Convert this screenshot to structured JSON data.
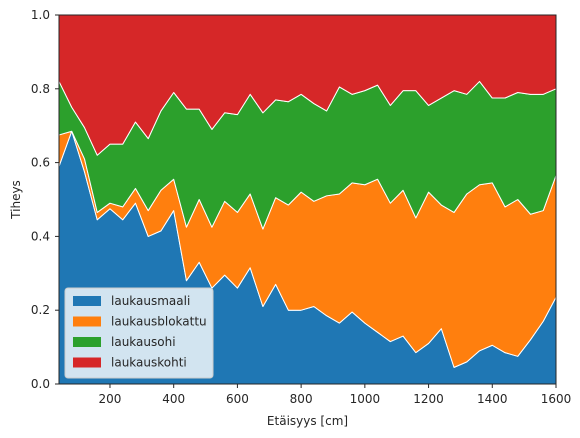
{
  "chart_data": {
    "type": "area",
    "stacked": true,
    "normalized": true,
    "xlabel": "Etäisyys [cm]",
    "ylabel": "Tiheys",
    "xlim": [
      40,
      1600
    ],
    "ylim": [
      0,
      1
    ],
    "xticks": [
      200,
      400,
      600,
      800,
      1000,
      1200,
      1400,
      1600
    ],
    "xtick_labels": [
      "200",
      "400",
      "600",
      "800",
      "1000",
      "1200",
      "1400",
      "1600"
    ],
    "yticks": [
      0,
      0.2,
      0.4,
      0.6,
      0.8,
      1.0
    ],
    "ytick_labels": [
      "0.0",
      "0.2",
      "0.4",
      "0.6",
      "0.8",
      "1.0"
    ],
    "grid": false,
    "legend_position": "lower-left",
    "x": [
      40,
      80,
      120,
      160,
      200,
      240,
      280,
      320,
      360,
      400,
      440,
      480,
      520,
      560,
      600,
      640,
      680,
      720,
      760,
      800,
      840,
      880,
      920,
      960,
      1000,
      1040,
      1080,
      1120,
      1160,
      1200,
      1240,
      1280,
      1320,
      1360,
      1400,
      1440,
      1480,
      1520,
      1560,
      1600
    ],
    "series": [
      {
        "name": "laukausmaali",
        "color": "#1f77b4",
        "values": [
          0.59,
          0.685,
          0.575,
          0.445,
          0.475,
          0.445,
          0.49,
          0.4,
          0.415,
          0.47,
          0.28,
          0.33,
          0.26,
          0.295,
          0.26,
          0.315,
          0.21,
          0.27,
          0.2,
          0.2,
          0.21,
          0.185,
          0.165,
          0.195,
          0.165,
          0.14,
          0.115,
          0.13,
          0.085,
          0.11,
          0.15,
          0.045,
          0.06,
          0.09,
          0.105,
          0.085,
          0.075,
          0.12,
          0.17,
          0.235
        ]
      },
      {
        "name": "laukausblokattu",
        "color": "#ff7f0e",
        "values": [
          0.085,
          0.0,
          0.035,
          0.02,
          0.015,
          0.035,
          0.04,
          0.07,
          0.11,
          0.085,
          0.145,
          0.17,
          0.165,
          0.2,
          0.205,
          0.2,
          0.21,
          0.235,
          0.285,
          0.32,
          0.285,
          0.325,
          0.35,
          0.35,
          0.375,
          0.415,
          0.375,
          0.395,
          0.365,
          0.41,
          0.335,
          0.42,
          0.455,
          0.45,
          0.44,
          0.395,
          0.425,
          0.34,
          0.3,
          0.33
        ]
      },
      {
        "name": "laukausohi",
        "color": "#2ca02c",
        "values": [
          0.145,
          0.065,
          0.085,
          0.155,
          0.16,
          0.17,
          0.18,
          0.195,
          0.215,
          0.235,
          0.32,
          0.245,
          0.265,
          0.24,
          0.265,
          0.27,
          0.315,
          0.265,
          0.28,
          0.265,
          0.265,
          0.23,
          0.29,
          0.24,
          0.255,
          0.255,
          0.265,
          0.27,
          0.345,
          0.235,
          0.29,
          0.33,
          0.27,
          0.28,
          0.23,
          0.295,
          0.29,
          0.325,
          0.315,
          0.235
        ]
      },
      {
        "name": "laukauskohti",
        "color": "#d62728",
        "values": [
          0.18,
          0.25,
          0.305,
          0.38,
          0.35,
          0.35,
          0.29,
          0.335,
          0.26,
          0.21,
          0.255,
          0.255,
          0.31,
          0.265,
          0.27,
          0.215,
          0.265,
          0.23,
          0.235,
          0.215,
          0.24,
          0.26,
          0.195,
          0.215,
          0.205,
          0.19,
          0.245,
          0.205,
          0.205,
          0.245,
          0.225,
          0.205,
          0.215,
          0.18,
          0.225,
          0.225,
          0.21,
          0.215,
          0.215,
          0.2
        ]
      }
    ]
  }
}
